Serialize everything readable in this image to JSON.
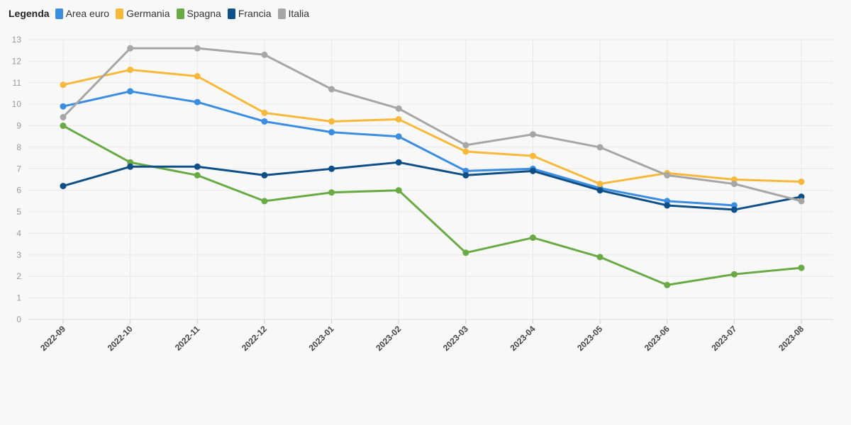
{
  "legend": {
    "title": "Legenda"
  },
  "chart_data": {
    "type": "line",
    "x": [
      "2022-09",
      "2022-10",
      "2022-11",
      "2022-12",
      "2023-01",
      "2023-02",
      "2023-03",
      "2023-04",
      "2023-05",
      "2023-06",
      "2023-07",
      "2023-08"
    ],
    "ylim": [
      0,
      13
    ],
    "yticks": [
      0,
      1,
      2,
      3,
      4,
      5,
      6,
      7,
      8,
      9,
      10,
      11,
      12,
      13
    ],
    "grid": true,
    "legend_position": "top-left",
    "series": [
      {
        "name": "Area euro",
        "color": "#3b8de0",
        "values": [
          9.9,
          10.6,
          10.1,
          9.2,
          8.7,
          8.5,
          6.9,
          7.0,
          6.1,
          5.5,
          5.3,
          null
        ]
      },
      {
        "name": "Germania",
        "color": "#f7b93c",
        "values": [
          10.9,
          11.6,
          11.3,
          9.6,
          9.2,
          9.3,
          7.8,
          7.6,
          6.3,
          6.8,
          6.5,
          6.4
        ]
      },
      {
        "name": "Spagna",
        "color": "#6aaa45",
        "values": [
          9.0,
          7.3,
          6.7,
          5.5,
          5.9,
          6.0,
          3.1,
          3.8,
          2.9,
          1.6,
          2.1,
          2.4
        ]
      },
      {
        "name": "Francia",
        "color": "#0f4f87",
        "values": [
          6.2,
          7.1,
          7.1,
          6.7,
          7.0,
          7.3,
          6.7,
          6.9,
          6.0,
          5.3,
          5.1,
          5.7
        ]
      },
      {
        "name": "Italia",
        "color": "#a6a6a6",
        "values": [
          9.4,
          12.6,
          12.6,
          12.3,
          10.7,
          9.8,
          8.1,
          8.6,
          8.0,
          6.7,
          6.3,
          5.5
        ]
      }
    ]
  }
}
